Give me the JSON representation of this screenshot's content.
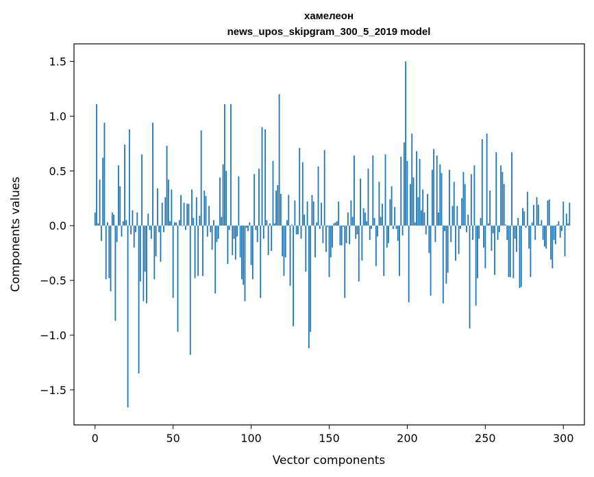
{
  "chart_data": {
    "type": "bar",
    "title": "хамелеон",
    "subtitle": "news_upos_skipgram_300_5_2019 model",
    "xlabel": "Vector components",
    "ylabel": "Components values",
    "xlim": [
      -13.5,
      313.5
    ],
    "ylim": [
      -1.82,
      1.66
    ],
    "xticks": [
      0,
      50,
      100,
      150,
      200,
      250,
      300
    ],
    "yticks": [
      -1.5,
      -1.0,
      -0.5,
      0.0,
      0.5,
      1.0,
      1.5
    ],
    "ytick_labels": [
      "−1.5",
      "−1.0",
      "−0.5",
      "0.0",
      "0.5",
      "1.0",
      "1.5"
    ],
    "color": "#1f77b4",
    "x_start": 0,
    "values": [
      0.12,
      1.11,
      0.02,
      0.42,
      -0.14,
      0.62,
      0.94,
      -0.49,
      0.03,
      -0.48,
      -0.6,
      0.12,
      0.1,
      -0.87,
      -0.15,
      0.55,
      0.36,
      -0.1,
      0.04,
      0.74,
      0.05,
      -1.66,
      0.88,
      -0.08,
      0.14,
      -0.2,
      -0.06,
      0.12,
      -1.35,
      -0.51,
      0.65,
      -0.69,
      -0.42,
      -0.71,
      0.11,
      -0.04,
      -0.12,
      0.94,
      -0.49,
      -0.28,
      0.34,
      -0.06,
      -0.33,
      0.21,
      -0.06,
      0.26,
      0.73,
      0.42,
      0.04,
      0.33,
      -0.66,
      0.03,
      0.03,
      -0.97,
      0.05,
      0.28,
      0.0,
      0.21,
      -0.04,
      0.2,
      0.2,
      -1.18,
      0.33,
      0.07,
      -0.48,
      0.26,
      -0.46,
      0.09,
      0.87,
      -0.46,
      0.32,
      0.27,
      -0.1,
      0.18,
      -0.06,
      -0.22,
      0.05,
      -0.62,
      -0.15,
      -0.12,
      0.44,
      0.08,
      0.56,
      1.11,
      0.5,
      -0.35,
      -0.04,
      1.11,
      -0.27,
      -0.12,
      -0.31,
      -0.1,
      0.45,
      -0.29,
      -0.49,
      -0.54,
      -0.69,
      -0.02,
      -0.05,
      0.03,
      -0.36,
      -0.49,
      0.47,
      -0.04,
      -0.15,
      0.52,
      -0.66,
      0.9,
      -0.12,
      0.88,
      0.05,
      -0.27,
      0.02,
      -0.23,
      0.59,
      0.02,
      0.32,
      0.37,
      1.2,
      0.29,
      -0.28,
      -0.46,
      -0.29,
      0.05,
      0.28,
      -0.55,
      0.01,
      -0.92,
      0.23,
      -0.08,
      -0.08,
      0.71,
      -0.12,
      0.58,
      0.1,
      -0.42,
      0.22,
      -1.12,
      -0.97,
      0.28,
      0.22,
      -0.29,
      0.03,
      0.54,
      -0.03,
      0.21,
      -0.16,
      0.69,
      -0.24,
      -0.01,
      -0.47,
      -0.29,
      -0.2,
      0.02,
      0.03,
      0.04,
      0.22,
      -0.18,
      -0.18,
      -0.01,
      -0.66,
      -0.16,
      0.12,
      -0.17,
      0.23,
      0.08,
      0.64,
      -0.12,
      -0.08,
      -0.51,
      0.43,
      -0.32,
      0.16,
      0.12,
      0.04,
      0.52,
      -0.13,
      -0.03,
      0.64,
      0.07,
      -0.37,
      -0.1,
      0.4,
      0.08,
      0.2,
      -0.46,
      0.65,
      -0.2,
      -0.16,
      0.24,
      0.36,
      -0.03,
      0.17,
      -0.03,
      -0.14,
      -0.46,
      0.63,
      -0.09,
      0.76,
      1.5,
      0.59,
      -0.7,
      0.38,
      0.84,
      0.44,
      0.03,
      0.68,
      0.26,
      0.61,
      0.14,
      0.33,
      0.12,
      -0.08,
      0.29,
      -0.25,
      -0.64,
      0.51,
      0.7,
      -0.15,
      0.64,
      0.12,
      0.56,
      0.48,
      -0.71,
      -0.05,
      -0.53,
      -0.43,
      0.51,
      -0.15,
      0.18,
      0.4,
      -0.32,
      0.18,
      -0.26,
      -0.03,
      0.25,
      0.49,
      0.38,
      -0.06,
      0.1,
      -0.94,
      0.47,
      -0.13,
      0.55,
      -0.73,
      -0.48,
      -0.12,
      0.07,
      0.79,
      -0.2,
      -0.39,
      0.84,
      0.02,
      0.32,
      -0.23,
      -0.07,
      -0.45,
      0.67,
      -0.13,
      -0.06,
      0.55,
      0.49,
      0.38,
      0.01,
      -0.13,
      -0.47,
      -0.47,
      0.67,
      -0.48,
      -0.12,
      -0.24,
      0.07,
      -0.57,
      -0.56,
      0.16,
      0.13,
      -0.02,
      0.31,
      -0.21,
      -0.47,
      0.03,
      0.19,
      -0.13,
      0.26,
      0.19,
      0.01,
      0.05,
      -0.13,
      -0.19,
      -0.21,
      0.23,
      0.24,
      -0.31,
      -0.39,
      -0.13,
      -0.17,
      0.01,
      0.04,
      -0.11,
      -0.05,
      0.22,
      -0.28,
      0.11,
      0.02,
      0.21
    ]
  }
}
